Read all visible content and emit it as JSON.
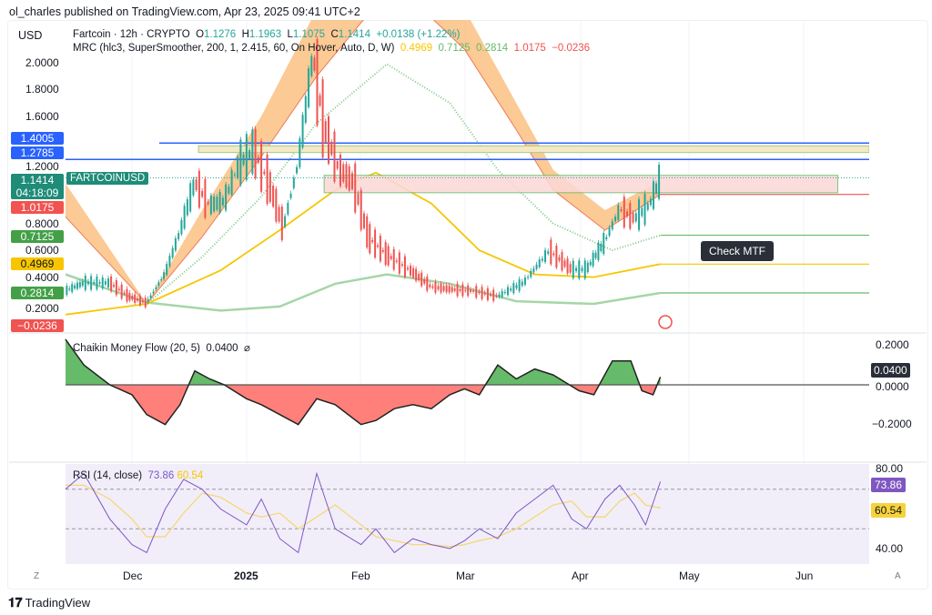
{
  "publisher": "ol_charles published on TradingView.com, Apr 23, 2025 09:41 UTC+2",
  "currency": "USD",
  "legend": {
    "symbol": "Fartcoin · 12h · CRYPTO",
    "o_label": "O",
    "o": "1.1276",
    "h_label": "H",
    "h": "1.1963",
    "l_label": "L",
    "l": "1.1075",
    "c_label": "C",
    "c": "1.1414",
    "change": "+0.0138 (+1.22%)",
    "mrc": "MRC (hlc3, SuperSmoother, 200, 1, 2.415, 60, On Hover, Auto, D, W)",
    "mrc_vals": [
      "0.4969",
      "0.7125",
      "0.2814",
      "1.0175",
      "−0.0236"
    ]
  },
  "price_axis": [
    "2.0000",
    "1.8000",
    "1.6000",
    "1.2000",
    "0.8000",
    "0.6000",
    "0.4000",
    "0.2000"
  ],
  "badges": {
    "b1": "1.4005",
    "b2": "1.2785",
    "last": "1.1414",
    "countdown": "04:18:09",
    "r1": "1.0175",
    "g1": "0.7125",
    "y1": "0.4969",
    "g2": "0.2814",
    "r2": "−0.0236"
  },
  "symbol_tag": "FARTCOINUSD",
  "note": "Check MTF",
  "cmf": {
    "title": "Chaikin Money Flow (20, 5)",
    "value": "0.0400",
    "eye": "⌀",
    "axis": [
      "0.2000",
      "0.0000",
      "−0.2000"
    ]
  },
  "rsi": {
    "title": "RSI (14, close)",
    "value": "73.86",
    "ma": "60.54",
    "axis": [
      "80.00",
      "40.00"
    ]
  },
  "time_axis": [
    "Dec",
    "2025",
    "Feb",
    "Mar",
    "Apr",
    "May",
    "Jun"
  ],
  "buttons": {
    "z": "Z",
    "a": "A"
  },
  "brand": "TradingView",
  "colors": {
    "up": "#26a69a",
    "down": "#ef5350",
    "blue": "#2962ff",
    "mean": "#f7c600",
    "green": "#4caf50",
    "rsi": "#7e57c2",
    "rsi_ma": "#f7d774"
  },
  "chart_data": {
    "type": "line",
    "price": {
      "dates": [
        "2024-11-13",
        "2024-11-18",
        "2024-11-25",
        "2024-11-30",
        "2024-12-05",
        "2024-12-10",
        "2024-12-14",
        "2024-12-18",
        "2024-12-22",
        "2024-12-26",
        "2024-12-30",
        "2025-01-03",
        "2025-01-07",
        "2025-01-11",
        "2025-01-15",
        "2025-01-19",
        "2025-01-22",
        "2025-01-26",
        "2025-01-30",
        "2025-02-03",
        "2025-02-08",
        "2025-02-14",
        "2025-02-20",
        "2025-02-26",
        "2025-03-03",
        "2025-03-10",
        "2025-03-17",
        "2025-03-24",
        "2025-03-30",
        "2025-04-03",
        "2025-04-08",
        "2025-04-12",
        "2025-04-16",
        "2025-04-20",
        "2025-04-23"
      ],
      "close": [
        0.3,
        0.36,
        0.36,
        0.26,
        0.21,
        0.43,
        0.74,
        1.11,
        0.94,
        0.97,
        1.25,
        1.35,
        1.11,
        0.77,
        1.25,
        2.06,
        1.52,
        1.21,
        1.11,
        0.7,
        0.57,
        0.46,
        0.33,
        0.31,
        0.3,
        0.26,
        0.36,
        0.6,
        0.46,
        0.46,
        0.67,
        0.91,
        0.84,
        0.94,
        1.14
      ]
    },
    "mrc": {
      "mean": {
        "dates": [
          "2024-11-13",
          "2024-12-05",
          "2024-12-25",
          "2025-01-10",
          "2025-01-25",
          "2025-02-05",
          "2025-02-20",
          "2025-03-05",
          "2025-03-20",
          "2025-04-05",
          "2025-04-23"
        ],
        "values": [
          0.12,
          0.2,
          0.45,
          0.75,
          1.05,
          1.18,
          0.95,
          0.6,
          0.42,
          0.4,
          0.4969
        ]
      },
      "upper": {
        "dates": [
          "2024-12-05",
          "2024-12-20",
          "2025-01-05",
          "2025-01-20",
          "2025-02-08",
          "2025-02-25",
          "2025-03-10",
          "2025-03-25",
          "2025-04-10",
          "2025-04-23"
        ],
        "values": [
          0.2,
          0.55,
          1.0,
          1.55,
          1.99,
          1.7,
          1.2,
          0.8,
          0.6,
          0.7125
        ]
      },
      "lower": {
        "dates": [
          "2024-11-13",
          "2024-12-05",
          "2024-12-25",
          "2025-01-10",
          "2025-01-25",
          "2025-02-08",
          "2025-02-25",
          "2025-03-15",
          "2025-04-05",
          "2025-04-23"
        ],
        "values": [
          0.42,
          0.21,
          0.15,
          0.18,
          0.35,
          0.42,
          0.35,
          0.22,
          0.2,
          0.2814
        ]
      },
      "outer_band": {
        "dates": [
          "2024-11-13",
          "2024-12-05",
          "2024-12-20",
          "2025-01-05",
          "2025-01-20",
          "2025-02-10",
          "2025-03-01",
          "2025-03-15",
          "2025-03-25",
          "2025-04-08",
          "2025-04-23"
        ],
        "outer": [
          1.1,
          0.2,
          0.9,
          1.6,
          2.4,
          3.0,
          2.4,
          1.7,
          1.2,
          0.9,
          1.12
        ],
        "inner": [
          0.85,
          0.2,
          0.7,
          1.3,
          1.9,
          2.6,
          2.1,
          1.5,
          1.05,
          0.75,
          1.0175
        ]
      }
    },
    "levels": [
      1.4005,
      1.2785
    ],
    "zones": [
      {
        "from": "2024-12-19",
        "top": 1.38,
        "bottom": 1.33
      },
      {
        "from": "2025-01-22",
        "to": "2025-06-10",
        "top": 1.16,
        "bottom": 1.03
      }
    ],
    "cmf": {
      "dates": [
        "2024-11-13",
        "2024-11-18",
        "2024-11-25",
        "2024-12-01",
        "2024-12-05",
        "2024-12-10",
        "2024-12-14",
        "2024-12-18",
        "2024-12-22",
        "2024-12-26",
        "2025-01-01",
        "2025-01-05",
        "2025-01-10",
        "2025-01-15",
        "2025-01-20",
        "2025-01-25",
        "2025-02-01",
        "2025-02-05",
        "2025-02-10",
        "2025-02-15",
        "2025-02-20",
        "2025-02-25",
        "2025-03-01",
        "2025-03-05",
        "2025-03-10",
        "2025-03-15",
        "2025-03-20",
        "2025-03-25",
        "2025-04-01",
        "2025-04-05",
        "2025-04-10",
        "2025-04-15",
        "2025-04-18",
        "2025-04-21",
        "2025-04-23"
      ],
      "values": [
        0.23,
        0.1,
        0.0,
        -0.05,
        -0.15,
        -0.2,
        -0.1,
        0.07,
        0.03,
        0.0,
        -0.07,
        -0.1,
        -0.15,
        -0.2,
        -0.07,
        -0.1,
        -0.2,
        -0.18,
        -0.12,
        -0.1,
        -0.12,
        -0.05,
        -0.02,
        -0.05,
        0.1,
        0.03,
        0.08,
        0.05,
        -0.03,
        -0.05,
        0.12,
        0.12,
        -0.03,
        -0.05,
        0.04
      ],
      "ylim": [
        -0.25,
        0.25
      ]
    },
    "rsi": {
      "dates": [
        "2024-11-13",
        "2024-11-18",
        "2024-11-25",
        "2024-12-01",
        "2024-12-05",
        "2024-12-10",
        "2024-12-15",
        "2024-12-20",
        "2024-12-25",
        "2025-01-01",
        "2025-01-05",
        "2025-01-10",
        "2025-01-15",
        "2025-01-20",
        "2025-01-25",
        "2025-02-01",
        "2025-02-05",
        "2025-02-10",
        "2025-02-15",
        "2025-02-20",
        "2025-02-25",
        "2025-03-01",
        "2025-03-05",
        "2025-03-10",
        "2025-03-15",
        "2025-03-20",
        "2025-03-25",
        "2025-03-30",
        "2025-04-03",
        "2025-04-08",
        "2025-04-12",
        "2025-04-16",
        "2025-04-19",
        "2025-04-23"
      ],
      "values": [
        70,
        78,
        55,
        42,
        38,
        60,
        75,
        70,
        60,
        52,
        65,
        45,
        38,
        78,
        50,
        42,
        50,
        38,
        45,
        42,
        40,
        44,
        50,
        45,
        58,
        65,
        72,
        55,
        50,
        65,
        72,
        62,
        52,
        73.86
      ],
      "ma": [
        72,
        72,
        65,
        55,
        46,
        46,
        58,
        68,
        66,
        58,
        56,
        58,
        50,
        56,
        62,
        52,
        46,
        44,
        42,
        42,
        41,
        42,
        44,
        46,
        50,
        56,
        62,
        64,
        56,
        56,
        64,
        68,
        62,
        60.54
      ],
      "levels": [
        70,
        50
      ],
      "ylim": [
        35,
        82
      ]
    },
    "time_range": [
      "2024-11-13",
      "2025-06-18"
    ]
  }
}
